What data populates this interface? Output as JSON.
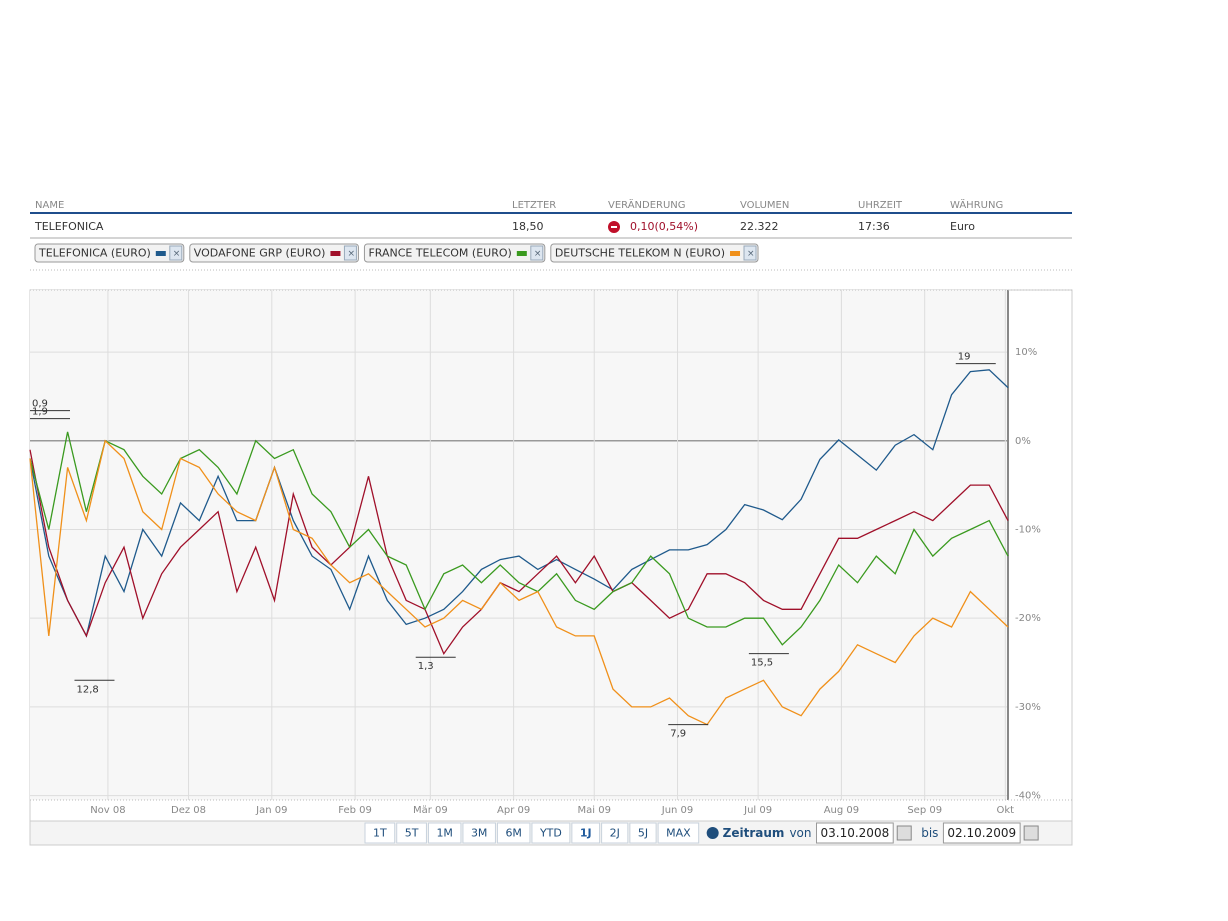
{
  "table": {
    "headers": [
      "NAME",
      "LETZTER",
      "VERÄNDERUNG",
      "VOLUMEN",
      "UHRZEIT",
      "WÄHRUNG"
    ],
    "row": [
      "TELEFONICA",
      "18,50",
      "0,10(0,54%)",
      "22.322",
      "17:36",
      "Euro"
    ]
  },
  "chart_data": {
    "type": "line",
    "x": [
      "2008-10-03",
      "2008-10-10",
      "2008-10-17",
      "2008-10-24",
      "2008-10-31",
      "2008-11-07",
      "2008-11-14",
      "2008-11-21",
      "2008-11-28",
      "2008-12-05",
      "2008-12-12",
      "2008-12-19",
      "2008-12-26",
      "2009-01-02",
      "2009-01-09",
      "2009-01-16",
      "2009-01-23",
      "2009-01-30",
      "2009-02-06",
      "2009-02-13",
      "2009-02-20",
      "2009-02-27",
      "2009-03-06",
      "2009-03-13",
      "2009-03-20",
      "2009-03-27",
      "2009-04-03",
      "2009-04-10",
      "2009-04-17",
      "2009-04-24",
      "2009-05-01",
      "2009-05-08",
      "2009-05-15",
      "2009-05-22",
      "2009-05-29",
      "2009-06-05",
      "2009-06-12",
      "2009-06-19",
      "2009-06-26",
      "2009-07-03",
      "2009-07-10",
      "2009-07-17",
      "2009-07-24",
      "2009-07-31",
      "2009-08-07",
      "2009-08-14",
      "2009-08-21",
      "2009-08-28",
      "2009-09-04",
      "2009-09-11",
      "2009-09-18",
      "2009-09-25",
      "2009-10-02"
    ],
    "series": [
      {
        "name": "TELEFONICA (EURO)",
        "color": "#1f5a8c",
        "values": [
          -2,
          -13,
          -18,
          -22,
          -13,
          -17,
          -10,
          -13,
          -7,
          -9,
          -4,
          -9,
          -9,
          -3,
          -9,
          -13,
          -14.5,
          -19,
          -13,
          -18,
          -20.7,
          -20,
          -19,
          -17,
          -14.5,
          -13.4,
          -13,
          -14.5,
          -13.4,
          -14.5,
          -15.6,
          -16.8,
          -14.5,
          -13.4,
          -12.3,
          -12.3,
          -11.7,
          -10,
          -7.2,
          -7.8,
          -8.9,
          -6.6,
          -2.1,
          0.1,
          -1.6,
          -3.3,
          -0.5,
          0.7,
          -1,
          5.2,
          7.8,
          8,
          6
        ]
      },
      {
        "name": "VODAFONE GRP (EURO)",
        "color": "#a0102a",
        "values": [
          -1,
          -12,
          -18,
          -22,
          -16,
          -12,
          -20,
          -15,
          -12,
          -10,
          -8,
          -17,
          -12,
          -18,
          -6,
          -12,
          -14,
          -12,
          -4,
          -13,
          -18,
          -19,
          -24,
          -21,
          -19,
          -16,
          -17,
          -15,
          -13,
          -16,
          -13,
          -17,
          -16,
          -18,
          -20,
          -19,
          -15,
          -15,
          -16,
          -18,
          -19,
          -19,
          -15,
          -11,
          -11,
          -10,
          -9,
          -8,
          -9,
          -7,
          -5,
          -5,
          -9
        ]
      },
      {
        "name": "FRANCE TELECOM (EURO)",
        "color": "#3a9a1f",
        "values": [
          -2,
          -10,
          1,
          -8,
          0,
          -1,
          -4,
          -6,
          -2,
          -1,
          -3,
          -6,
          0,
          -2,
          -1,
          -6,
          -8,
          -12,
          -10,
          -13,
          -14,
          -19,
          -15,
          -14,
          -16,
          -14,
          -16,
          -17,
          -15,
          -18,
          -19,
          -17,
          -16,
          -13,
          -15,
          -20,
          -21,
          -21,
          -20,
          -20,
          -23,
          -21,
          -18,
          -14,
          -16,
          -13,
          -15,
          -10,
          -13,
          -11,
          -10,
          -9,
          -13
        ]
      },
      {
        "name": "DEUTSCHE TELEKOM N (EURO)",
        "color": "#f0901a",
        "values": [
          -2,
          -22,
          -3,
          -9,
          0,
          -2,
          -8,
          -10,
          -2,
          -3,
          -6,
          -8,
          -9,
          -3,
          -10,
          -11,
          -14,
          -16,
          -15,
          -17,
          -19,
          -21,
          -20,
          -18,
          -19,
          -16,
          -18,
          -17,
          -21,
          -22,
          -22,
          -28,
          -30,
          -30,
          -29,
          -31,
          -32,
          -29,
          -28,
          -27,
          -30,
          -31,
          -28,
          -26,
          -23,
          -24,
          -25,
          -22,
          -20,
          -21,
          -17,
          -19,
          -21
        ]
      }
    ],
    "xlim": [
      "2008-10-03",
      "2009-10-02"
    ],
    "xticks": [
      {
        "value": "2008-11-01",
        "label": "Nov 08"
      },
      {
        "value": "2008-12-01",
        "label": "Dez 08"
      },
      {
        "value": "2009-01-01",
        "label": "Jan 09"
      },
      {
        "value": "2009-02-01",
        "label": "Feb 09"
      },
      {
        "value": "2009-03-01",
        "label": "Mär 09"
      },
      {
        "value": "2009-04-01",
        "label": "Apr 09"
      },
      {
        "value": "2009-05-01",
        "label": "Mai 09"
      },
      {
        "value": "2009-06-01",
        "label": "Jun 09"
      },
      {
        "value": "2009-07-01",
        "label": "Jul 09"
      },
      {
        "value": "2009-08-01",
        "label": "Aug 09"
      },
      {
        "value": "2009-09-01",
        "label": "Sep 09"
      },
      {
        "value": "2009-10-01",
        "label": "Okt"
      }
    ],
    "ylim": [
      -40.5,
      17
    ],
    "yticks": [
      {
        "value": 10,
        "label": "10%"
      },
      {
        "value": 0,
        "label": "0%"
      },
      {
        "value": -10,
        "label": "-10%"
      },
      {
        "value": -20,
        "label": "-20%"
      },
      {
        "value": -30,
        "label": "-30%"
      },
      {
        "value": -40,
        "label": "-40%"
      }
    ],
    "grid": true,
    "annotations": [
      {
        "text": "0,9",
        "x": "2008-10-03",
        "y": 3.4
      },
      {
        "text": "1,9",
        "x": "2008-10-03",
        "y": 2.5
      },
      {
        "text": "12,8",
        "x": "2008-10-27",
        "y": -27
      },
      {
        "text": "1,3",
        "x": "2009-03-03",
        "y": -24.4
      },
      {
        "text": "7,9",
        "x": "2009-06-05",
        "y": -32
      },
      {
        "text": "15,5",
        "x": "2009-07-05",
        "y": -24
      },
      {
        "text": "19",
        "x": "2009-09-20",
        "y": 8.7
      }
    ]
  },
  "periods": [
    "1T",
    "5T",
    "1M",
    "3M",
    "6M",
    "YTD",
    "1J",
    "2J",
    "5J",
    "MAX"
  ],
  "active_period_index": 6,
  "range": {
    "label": "Zeitraum",
    "from_label": "von",
    "from": "03.10.2008",
    "to_label": "bis",
    "to": "02.10.2009"
  }
}
